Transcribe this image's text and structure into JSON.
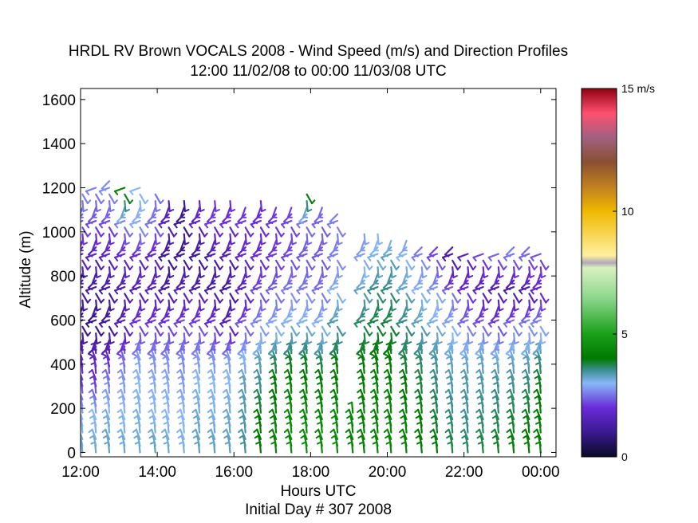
{
  "chart_data": {
    "type": "scatter",
    "subtype": "wind-barb-profile",
    "title": "HRDL RV Brown VOCALS 2008 - Wind Speed (m/s) and Direction Profiles",
    "subtitle": "12:00 11/02/08 to 00:00 11/03/08  UTC",
    "xlabel": "Hours UTC",
    "xlabel2": "Initial Day # 307  2008",
    "ylabel": "Altitude (m)",
    "xlim": [
      12,
      24.4
    ],
    "ylim": [
      -20,
      1650
    ],
    "x_ticks": [
      12,
      14,
      16,
      18,
      20,
      22,
      24
    ],
    "x_tick_labels": [
      "12:00",
      "14:00",
      "16:00",
      "18:00",
      "20:00",
      "22:00",
      "00:00"
    ],
    "y_ticks": [
      0,
      200,
      400,
      600,
      800,
      1000,
      1200,
      1400,
      1600
    ],
    "y_tick_labels": [
      "0",
      "200",
      "400",
      "600",
      "800",
      "1000",
      "1200",
      "1400",
      "1600"
    ],
    "colorbar": {
      "min": 0,
      "max": 15,
      "ticks": [
        0,
        5,
        10,
        15
      ],
      "tick_labels": [
        "0",
        "5",
        "10",
        "15 m/s"
      ],
      "stops": [
        {
          "v": 0,
          "c": "#0a0a28"
        },
        {
          "v": 1,
          "c": "#3a1a90"
        },
        {
          "v": 2,
          "c": "#6a2ad8"
        },
        {
          "v": 3,
          "c": "#88b8f8"
        },
        {
          "v": 3.5,
          "c": "#40909a"
        },
        {
          "v": 4,
          "c": "#007a00"
        },
        {
          "v": 5,
          "c": "#1aa01a"
        },
        {
          "v": 6.5,
          "c": "#8fd88f"
        },
        {
          "v": 7.7,
          "c": "#d8f0c0"
        },
        {
          "v": 7.9,
          "c": "#b0a8b8"
        },
        {
          "v": 8.2,
          "c": "#fff0a0"
        },
        {
          "v": 10,
          "c": "#f0b800"
        },
        {
          "v": 11,
          "c": "#c08020"
        },
        {
          "v": 12,
          "c": "#8a5030"
        },
        {
          "v": 13,
          "c": "#a06080"
        },
        {
          "v": 14,
          "c": "#ff5070"
        },
        {
          "v": 15,
          "c": "#900010"
        }
      ]
    },
    "profile_times": [
      12.05,
      12.4,
      12.75,
      13.15,
      13.55,
      13.95,
      14.3,
      14.7,
      15.1,
      15.5,
      15.9,
      16.3,
      16.7,
      17.1,
      17.5,
      17.9,
      18.3,
      18.7,
      19.1,
      19.4,
      19.75,
      20.1,
      20.5,
      20.9,
      21.3,
      21.7,
      22.1,
      22.5,
      22.9,
      23.3,
      23.7,
      24.0
    ],
    "profile_tops": [
      1180,
      1200,
      1230,
      1220,
      1210,
      1170,
      1160,
      1150,
      1140,
      1150,
      1140,
      1130,
      1140,
      1130,
      1110,
      1170,
      1120,
      1100,
      180,
      1010,
      1000,
      980,
      970,
      950,
      940,
      930,
      920,
      910,
      920,
      930,
      930,
      920
    ],
    "profile_bottoms": [
      0,
      0,
      0,
      0,
      0,
      0,
      0,
      0,
      0,
      0,
      0,
      0,
      0,
      0,
      0,
      0,
      0,
      0,
      0,
      0,
      0,
      0,
      0,
      0,
      0,
      0,
      0,
      0,
      0,
      0,
      0,
      0
    ],
    "speed_altitudes": [
      0,
      150,
      300,
      450,
      600,
      750,
      900,
      1050,
      1200
    ],
    "speed_profiles": [
      [
        3.2,
        3.0,
        2.2,
        1.8,
        0.9,
        1.3,
        1.7,
        2.3,
        2.7
      ],
      [
        3.2,
        3.0,
        2.1,
        1.6,
        0.9,
        1.2,
        1.6,
        2.2,
        2.6
      ],
      [
        3.3,
        3.1,
        2.6,
        1.7,
        1.1,
        1.2,
        1.7,
        2.2,
        2.7
      ],
      [
        3.2,
        3.0,
        2.8,
        2.3,
        1.5,
        1.4,
        1.8,
        2.6,
        4.2
      ],
      [
        3.2,
        3.1,
        3.0,
        2.7,
        2.1,
        1.5,
        1.8,
        2.9,
        3.0
      ],
      [
        3.3,
        3.0,
        2.9,
        2.6,
        2.1,
        1.6,
        1.7,
        2.5,
        2.5
      ],
      [
        3.2,
        3.0,
        2.9,
        2.6,
        2.1,
        1.3,
        1.0,
        1.6,
        1.6
      ],
      [
        3.1,
        3.0,
        2.8,
        2.6,
        2.2,
        1.6,
        1.1,
        1.0,
        1.0
      ],
      [
        3.3,
        3.2,
        3.0,
        2.7,
        2.2,
        1.5,
        1.0,
        1.7,
        1.7
      ],
      [
        3.3,
        3.1,
        3.0,
        2.6,
        2.0,
        1.3,
        1.3,
        2.1,
        2.1
      ],
      [
        3.3,
        3.2,
        3.0,
        2.7,
        1.6,
        1.2,
        1.4,
        2.0,
        2.0
      ],
      [
        3.5,
        3.4,
        3.3,
        2.9,
        2.3,
        1.7,
        1.8,
        2.1,
        2.1
      ],
      [
        4.0,
        4.0,
        3.5,
        3.2,
        2.7,
        2.2,
        2.0,
        2.0,
        2.0
      ],
      [
        4.3,
        4.2,
        4.0,
        3.5,
        2.9,
        2.4,
        2.1,
        2.1,
        2.1
      ],
      [
        4.4,
        4.4,
        4.2,
        3.7,
        3.1,
        2.6,
        2.2,
        2.2,
        2.2
      ],
      [
        4.5,
        4.4,
        4.2,
        3.7,
        3.1,
        2.6,
        2.3,
        2.5,
        4.3
      ],
      [
        4.4,
        4.3,
        4.1,
        3.5,
        3.0,
        2.5,
        2.3,
        2.4,
        2.4
      ],
      [
        4.5,
        4.4,
        4.2,
        3.8,
        3.4,
        3.0,
        2.6,
        2.6,
        2.6
      ],
      [
        4.3,
        4.3,
        4.3,
        4.3,
        4.3,
        4.3,
        4.3,
        4.3,
        4.3
      ],
      [
        4.2,
        4.2,
        4.1,
        3.9,
        3.7,
        3.3,
        2.8,
        2.8,
        2.8
      ],
      [
        4.4,
        4.3,
        4.2,
        4.0,
        3.8,
        3.6,
        3.1,
        2.9,
        2.9
      ],
      [
        4.4,
        4.3,
        4.2,
        4.0,
        3.8,
        3.6,
        3.3,
        2.8,
        2.8
      ],
      [
        4.3,
        4.2,
        4.0,
        3.7,
        3.6,
        3.3,
        3.0,
        2.6,
        2.6
      ],
      [
        4.1,
        4.0,
        3.8,
        3.6,
        3.3,
        3.0,
        2.6,
        2.3,
        2.3
      ],
      [
        4.0,
        3.8,
        3.6,
        3.4,
        3.1,
        2.8,
        2.2,
        2.1,
        2.1
      ],
      [
        3.8,
        3.6,
        3.4,
        3.2,
        2.9,
        2.4,
        1.2,
        2.0,
        2.0
      ],
      [
        3.7,
        3.5,
        3.4,
        3.1,
        2.5,
        2.0,
        1.6,
        2.1,
        2.1
      ],
      [
        3.8,
        3.6,
        3.4,
        3.2,
        2.3,
        1.6,
        2.2,
        2.4,
        2.4
      ],
      [
        3.9,
        3.7,
        3.5,
        3.0,
        2.2,
        1.4,
        2.4,
        2.6,
        2.6
      ],
      [
        4.0,
        3.8,
        3.5,
        3.1,
        2.5,
        1.3,
        2.5,
        2.8,
        2.8
      ],
      [
        4.1,
        3.9,
        3.6,
        3.2,
        2.6,
        1.4,
        2.4,
        2.7,
        2.7
      ],
      [
        4.2,
        4.1,
        3.9,
        3.4,
        2.7,
        1.8,
        2.3,
        2.6,
        2.6
      ]
    ],
    "grid": false,
    "legend": "colorbar-right"
  }
}
